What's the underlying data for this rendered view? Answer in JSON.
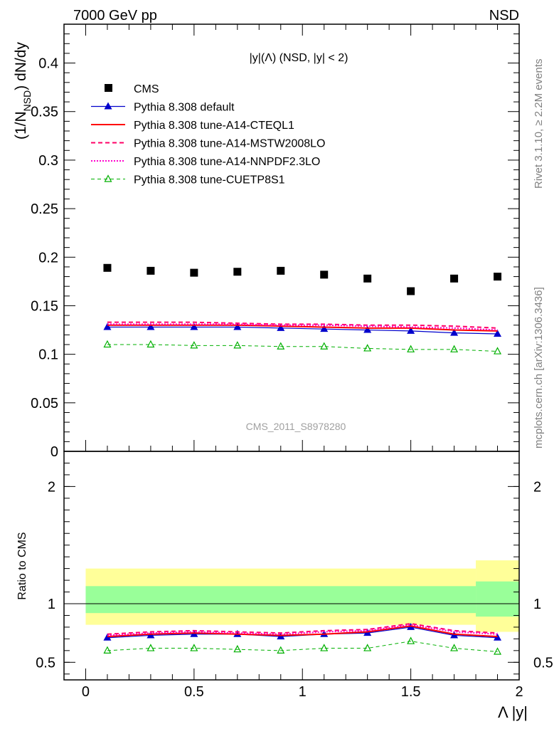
{
  "header": {
    "left": "7000 GeV pp",
    "right": "NSD"
  },
  "side_labels": {
    "rivet": "Rivet 3.1.10, ≥ 2.2M events",
    "mcplots": "mcplots.cern.ch [arXiv:1306.3436]"
  },
  "colors": {
    "cms": "#000000",
    "default": "#0000cc",
    "cteql1": "#ff0000",
    "mstw": "#ff0066",
    "nnpdf": "#ff00cc",
    "cuetp8s1": "#00b000",
    "band_inner": "#99ff99",
    "band_outer": "#ffff99"
  },
  "chart_data": [
    {
      "type": "scatter",
      "title": "|y|(Λ) (NSD, |y| < 2)",
      "ylabel": "(1/N_NSD) dN/dy",
      "xlabel": "Λ |y|",
      "xlim": [
        -0.1,
        2.0
      ],
      "ylim": [
        0,
        0.44
      ],
      "yticks": [
        "0",
        "0.05",
        "0.1",
        "0.15",
        "0.2",
        "0.25",
        "0.3",
        "0.35",
        "0.4"
      ],
      "analysis_label": "CMS_2011_S8978280",
      "legend_position": "top-left",
      "x": [
        0.1,
        0.3,
        0.5,
        0.7,
        0.9,
        1.1,
        1.3,
        1.5,
        1.7,
        1.9
      ],
      "series": [
        {
          "name": "CMS",
          "values": [
            0.189,
            0.186,
            0.184,
            0.185,
            0.186,
            0.182,
            0.178,
            0.165,
            0.178,
            0.18
          ]
        },
        {
          "name": "Pythia 8.308 default",
          "values": [
            0.128,
            0.128,
            0.128,
            0.128,
            0.127,
            0.126,
            0.125,
            0.124,
            0.122,
            0.121
          ]
        },
        {
          "name": "Pythia 8.308 tune-A14-CTEQL1",
          "values": [
            0.13,
            0.13,
            0.13,
            0.13,
            0.129,
            0.128,
            0.127,
            0.127,
            0.125,
            0.124
          ]
        },
        {
          "name": "Pythia 8.308 tune-A14-MSTW2008LO",
          "values": [
            0.133,
            0.133,
            0.133,
            0.132,
            0.131,
            0.131,
            0.13,
            0.13,
            0.129,
            0.127
          ]
        },
        {
          "name": "Pythia 8.308 tune-A14-NNPDF2.3LO",
          "values": [
            0.131,
            0.131,
            0.131,
            0.131,
            0.13,
            0.13,
            0.129,
            0.128,
            0.127,
            0.125
          ]
        },
        {
          "name": "Pythia 8.308 tune-CUETP8S1",
          "values": [
            0.11,
            0.11,
            0.109,
            0.109,
            0.108,
            0.108,
            0.106,
            0.105,
            0.105,
            0.103
          ]
        }
      ]
    },
    {
      "type": "line",
      "ylabel": "Ratio to CMS",
      "xlabel": "Λ |y|",
      "xlim": [
        -0.1,
        2.0
      ],
      "ylim": [
        0.35,
        2.3
      ],
      "yticks": [
        "0.5",
        "1",
        "2"
      ],
      "xticks": [
        "0",
        "0.5",
        "1",
        "1.5",
        "2"
      ],
      "x": [
        0.1,
        0.3,
        0.5,
        0.7,
        0.9,
        1.1,
        1.3,
        1.5,
        1.7,
        1.9
      ],
      "bands": [
        {
          "x_from": 0.0,
          "x_to": 1.8,
          "inner": [
            0.92,
            1.15
          ],
          "outer": [
            0.82,
            1.3
          ]
        },
        {
          "x_from": 1.8,
          "x_to": 2.0,
          "inner": [
            0.89,
            1.19
          ],
          "outer": [
            0.76,
            1.37
          ]
        }
      ],
      "series": [
        {
          "name": "Pythia 8.308 default",
          "values": [
            0.71,
            0.73,
            0.74,
            0.74,
            0.72,
            0.74,
            0.75,
            0.8,
            0.73,
            0.71
          ]
        },
        {
          "name": "Pythia 8.308 tune-A14-CTEQL1",
          "values": [
            0.72,
            0.74,
            0.75,
            0.74,
            0.73,
            0.74,
            0.76,
            0.81,
            0.74,
            0.72
          ]
        },
        {
          "name": "Pythia 8.308 tune-A14-MSTW2008LO",
          "values": [
            0.74,
            0.76,
            0.77,
            0.76,
            0.75,
            0.77,
            0.78,
            0.83,
            0.77,
            0.75
          ]
        },
        {
          "name": "Pythia 8.308 tune-A14-NNPDF2.3LO",
          "values": [
            0.73,
            0.75,
            0.76,
            0.75,
            0.74,
            0.76,
            0.77,
            0.82,
            0.76,
            0.74
          ]
        },
        {
          "name": "Pythia 8.308 tune-CUETP8S1",
          "values": [
            0.6,
            0.62,
            0.62,
            0.61,
            0.6,
            0.62,
            0.62,
            0.68,
            0.62,
            0.59
          ]
        }
      ]
    }
  ]
}
